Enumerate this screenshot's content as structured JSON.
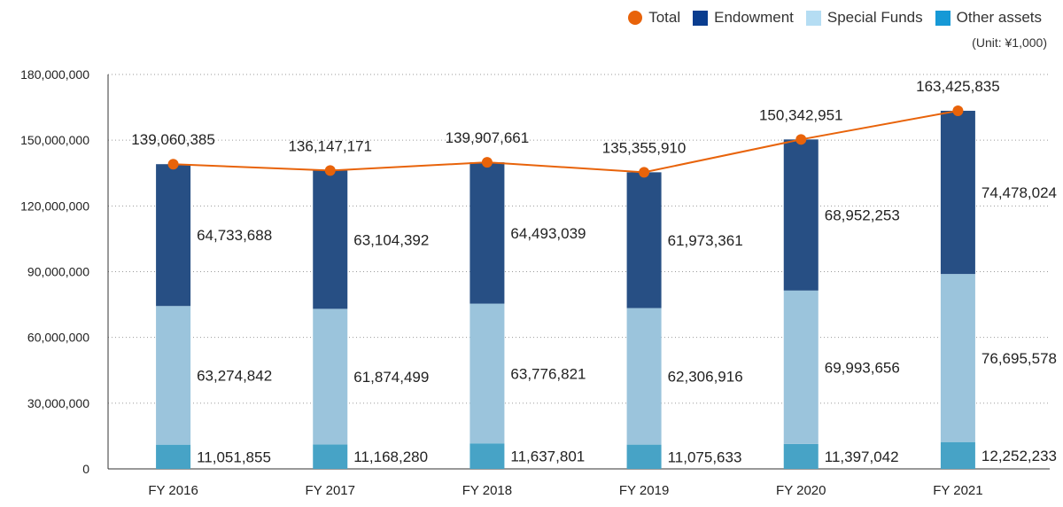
{
  "chart_data": {
    "type": "bar",
    "stacked": true,
    "unit": "(Unit: ¥1,000)",
    "categories": [
      "FY 2016",
      "FY 2017",
      "FY 2018",
      "FY 2019",
      "FY 2020",
      "FY 2021"
    ],
    "highlight_category": "FY 2021",
    "series": [
      {
        "name": "Other assets",
        "color": "#47A3C6",
        "values": [
          11051855,
          11168280,
          11637801,
          11075633,
          11397042,
          12252233
        ],
        "labels": [
          "11,051,855",
          "11,168,280",
          "11,637,801",
          "11,075,633",
          "11,397,042",
          "12,252,233"
        ]
      },
      {
        "name": "Special Funds",
        "color": "#9BC4DC",
        "values": [
          63274842,
          61874499,
          63776821,
          62306916,
          69993656,
          76695578
        ],
        "labels": [
          "63,274,842",
          "61,874,499",
          "63,776,821",
          "62,306,916",
          "69,993,656",
          "76,695,578"
        ]
      },
      {
        "name": "Endowment",
        "color": "#274F84",
        "values": [
          64733688,
          63104392,
          64493039,
          61973361,
          68952253,
          74478024
        ],
        "labels": [
          "64,733,688",
          "63,104,392",
          "64,493,039",
          "61,973,361",
          "68,952,253",
          "74,478,024"
        ]
      }
    ],
    "total": {
      "name": "Total",
      "color": "#E8630A",
      "type": "line",
      "values": [
        139060385,
        136147171,
        139907661,
        135355910,
        150342951,
        163425835
      ],
      "labels": [
        "139,060,385",
        "136,147,171",
        "139,907,661",
        "135,355,910",
        "150,342,951",
        "163,425,835"
      ]
    },
    "ylim": [
      0,
      180000000
    ],
    "yticks": [
      0,
      30000000,
      60000000,
      90000000,
      120000000,
      150000000,
      180000000
    ],
    "ytick_labels": [
      "0",
      "30,000,000",
      "60,000,000",
      "90,000,000",
      "120,000,000",
      "150,000,000",
      "180,000,000"
    ],
    "grid": "horizontal-dotted",
    "legend": {
      "position": "top-right",
      "items": [
        {
          "name": "Total",
          "color": "#E8630A",
          "shape": "circle"
        },
        {
          "name": "Endowment",
          "color": "#0A3D8F",
          "shape": "square"
        },
        {
          "name": "Special Funds",
          "color": "#B5DDF3",
          "shape": "square"
        },
        {
          "name": "Other assets",
          "color": "#1699D6",
          "shape": "square"
        }
      ]
    },
    "highlight_color": "#4A86B0"
  }
}
